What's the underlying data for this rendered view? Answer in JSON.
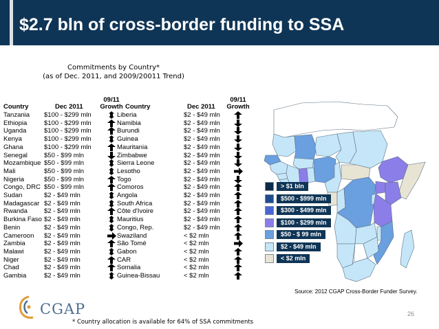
{
  "slide": {
    "title": "$2.7 bln of cross-border funding to SSA",
    "page_number": "26",
    "source": "Source: 2012 CGAP Cross-Border Funder Survey.",
    "footnote": "* Country allocation is available for 64% of SSA commitments",
    "logo_text": "CGAP",
    "colors": {
      "header": "#0f3556",
      "arrow": "#000000"
    }
  },
  "chart_data": {
    "type": "table",
    "title": "Commitments by Country*",
    "subtitle": "(as of Dec. 2011, and 2009/20011 Trend)",
    "columns": {
      "country": "Country",
      "dec2011": "Dec 2011",
      "growth_top": "09/11",
      "growth_bottom": "Growth"
    },
    "rows_left": [
      {
        "country": "Tanzania",
        "value": "$100 - $299 mln",
        "trend": "up-down"
      },
      {
        "country": "Ethiopia",
        "value": "$100 - $299 mln",
        "trend": "up"
      },
      {
        "country": "Uganda",
        "value": "$100 - $299 mln",
        "trend": "up"
      },
      {
        "country": "Kenya",
        "value": "$100 - $299 mln",
        "trend": "up-down"
      },
      {
        "country": "Ghana",
        "value": "$100 - $299 mln",
        "trend": "up"
      },
      {
        "country": "Senegal",
        "value": "$50 - $99 mln",
        "trend": "down"
      },
      {
        "country": "Mozambique",
        "value": "$50 - $99 mln",
        "trend": "up-down"
      },
      {
        "country": "Mali",
        "value": "$50 - $99 mln",
        "trend": "up-down"
      },
      {
        "country": "Nigeria",
        "value": "$50 - $99 mln",
        "trend": "up"
      },
      {
        "country": "Congo, DRC",
        "value": "$50 - $99 mln",
        "trend": "up"
      },
      {
        "country": "Sudan",
        "value": "$2 - $49 mln",
        "trend": "up-down"
      },
      {
        "country": "Madagascar",
        "value": "$2 - $49 mln",
        "trend": "up-down"
      },
      {
        "country": "Rwanda",
        "value": "$2 - $49 mln",
        "trend": "up"
      },
      {
        "country": "Burkina Faso",
        "value": "$2 - $49 mln",
        "trend": "up-down"
      },
      {
        "country": "Benin",
        "value": "$2 - $49 mln",
        "trend": "up-down"
      },
      {
        "country": "Cameroon",
        "value": "$2 - $49 mln",
        "trend": "right"
      },
      {
        "country": "Zambia",
        "value": "$2 - $49 mln",
        "trend": "up"
      },
      {
        "country": "Malawi",
        "value": "$2 - $49 mln",
        "trend": "up-down"
      },
      {
        "country": "Niger",
        "value": "$2 - $49 mln",
        "trend": "up"
      },
      {
        "country": "Chad",
        "value": "$2 - $49 mln",
        "trend": "up"
      },
      {
        "country": "Gambia",
        "value": "$2 - $49 mln",
        "trend": "up-down"
      }
    ],
    "rows_right": [
      {
        "country": "Liberia",
        "value": "$2 - $49 mln",
        "trend": "up"
      },
      {
        "country": "Namibia",
        "value": "$2 - $49 mln",
        "trend": "down"
      },
      {
        "country": "Burundi",
        "value": "$2 - $49 mln",
        "trend": "down"
      },
      {
        "country": "Guinea",
        "value": "$2 - $49 mln",
        "trend": "down"
      },
      {
        "country": "Mauritania",
        "value": "$2 - $49 mln",
        "trend": "down"
      },
      {
        "country": "Zimbabwe",
        "value": "$2 - $49 mln",
        "trend": "down"
      },
      {
        "country": "Sierra Leone",
        "value": "$2 - $49 mln",
        "trend": "down"
      },
      {
        "country": "Lesotho",
        "value": "$2 - $49 mln",
        "trend": "right"
      },
      {
        "country": "Togo",
        "value": "$2 - $49 mln",
        "trend": "down"
      },
      {
        "country": "Comoros",
        "value": "$2 - $49 mln",
        "trend": "up"
      },
      {
        "country": "Angola",
        "value": "$2 - $49 mln",
        "trend": "up"
      },
      {
        "country": "South Africa",
        "value": "$2 - $49 mln",
        "trend": "up"
      },
      {
        "country": "Côte d'Ivoire",
        "value": "$2 - $49 mln",
        "trend": "up"
      },
      {
        "country": "Mauritius",
        "value": "$2 - $49 mln",
        "trend": "up"
      },
      {
        "country": "Congo, Rep.",
        "value": "$2 - $49 mln",
        "trend": "up"
      },
      {
        "country": "Swaziland",
        "value": "< $2 mln",
        "trend": "up"
      },
      {
        "country": "São Tomé",
        "value": "< $2 mln",
        "trend": "right"
      },
      {
        "country": "Gabon",
        "value": "< $2 mln",
        "trend": "up"
      },
      {
        "country": "CAR",
        "value": "< $2 mln",
        "trend": "up"
      },
      {
        "country": "Somalia",
        "value": "< $2 mln",
        "trend": "up"
      },
      {
        "country": "Guinea-Bissau",
        "value": "< $2 mln",
        "trend": "up"
      }
    ],
    "legend": [
      {
        "label": "> $1 bln",
        "color": "#0c2a4a"
      },
      {
        "label": "$500 - $999 mln",
        "color": "#1f4c8f"
      },
      {
        "label": "$300 - $499 mln",
        "color": "#4a66d6"
      },
      {
        "label": "$100 - $299 mln",
        "color": "#8c7ee8"
      },
      {
        "label": "$50 - $ 99 mln",
        "color": "#6a9fe0"
      },
      {
        "label": "$2 - $49 mln",
        "color": "#c4e6f8"
      },
      {
        "label": "< $2 mln",
        "color": "#e8e4d4"
      }
    ]
  }
}
